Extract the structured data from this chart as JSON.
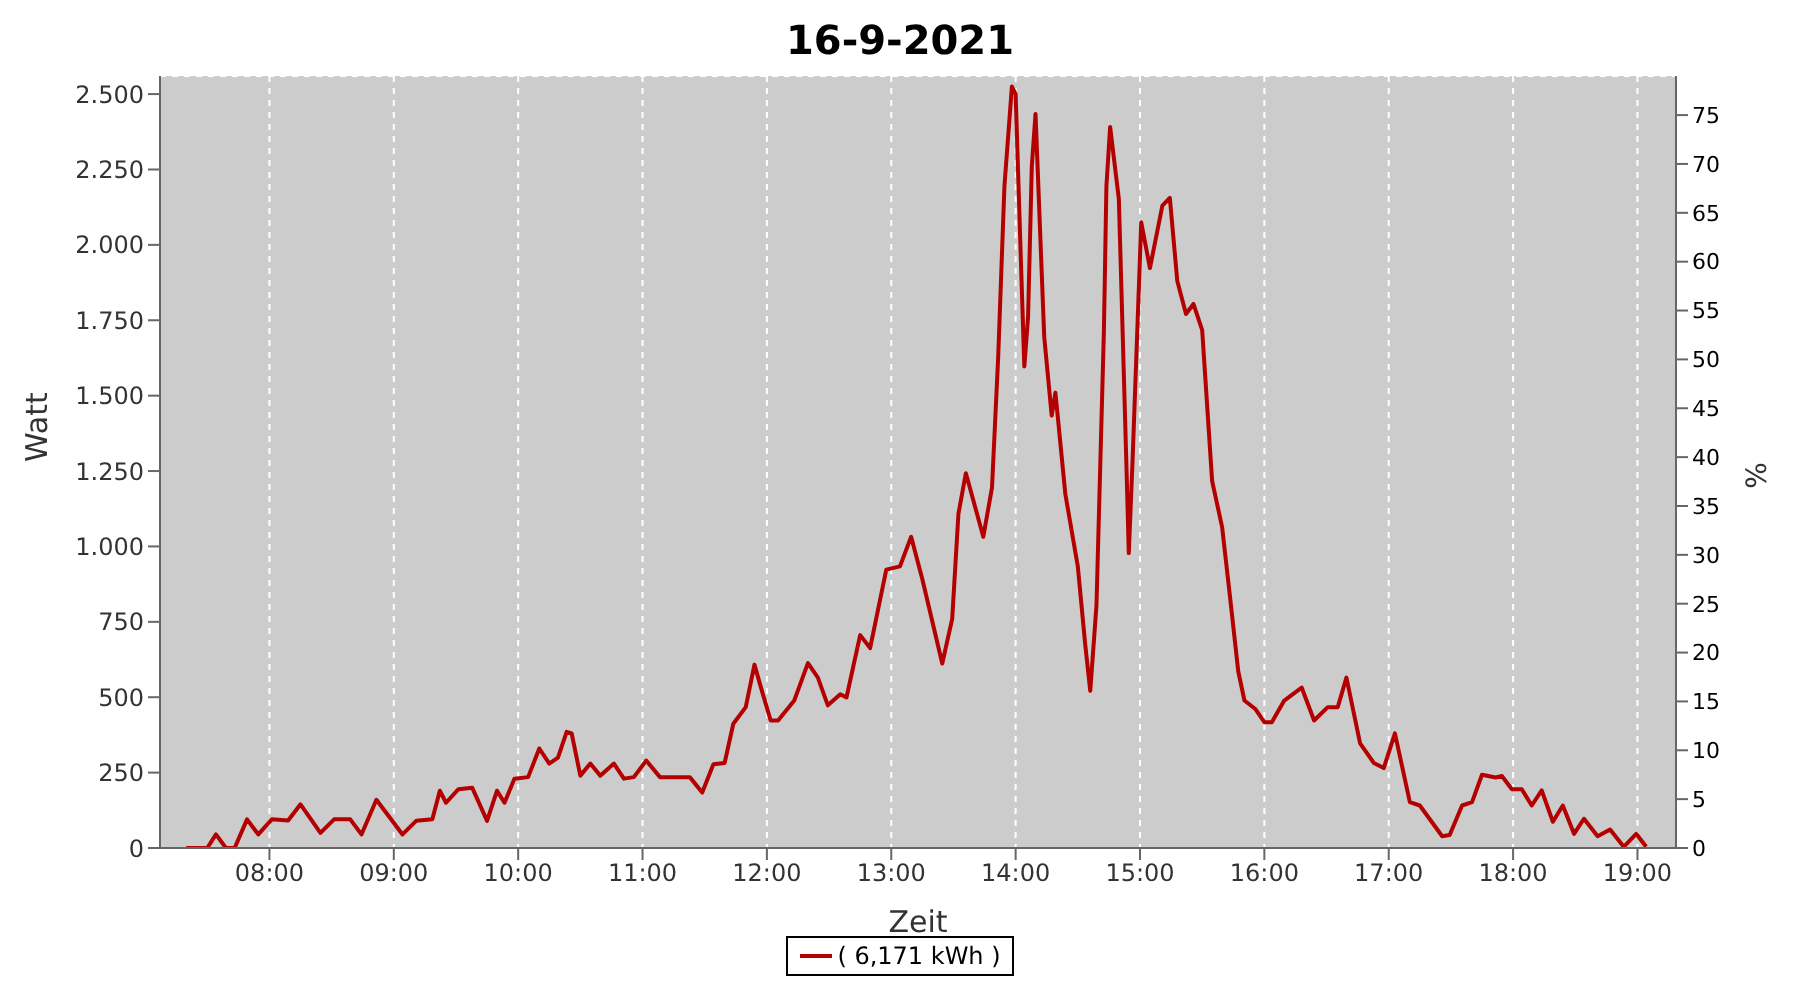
{
  "chart_data": {
    "type": "line",
    "title": "16-9-2021",
    "xlabel": "Zeit",
    "ylabel": "Watt",
    "y2label": "%",
    "x": [
      7.33,
      7.5,
      7.57,
      7.65,
      7.72,
      7.82,
      7.91,
      8.02,
      8.15,
      8.25,
      8.41,
      8.52,
      8.65,
      8.74,
      8.86,
      9.07,
      9.18,
      9.31,
      9.37,
      9.42,
      9.52,
      9.63,
      9.75,
      9.83,
      9.89,
      9.97,
      10.08,
      10.17,
      10.25,
      10.32,
      10.39,
      10.43,
      10.5,
      10.58,
      10.66,
      10.77,
      10.85,
      10.93,
      11.03,
      11.14,
      11.38,
      11.48,
      11.57,
      11.66,
      11.73,
      11.83,
      11.9,
      11.96,
      12.03,
      12.09,
      12.22,
      12.33,
      12.41,
      12.49,
      12.59,
      12.64,
      12.75,
      12.83,
      12.96,
      13.07,
      13.16,
      13.25,
      13.41,
      13.49,
      13.54,
      13.6,
      13.74,
      13.81,
      13.86,
      13.91,
      13.97,
      14.0,
      14.04,
      14.07,
      14.1,
      14.13,
      14.16,
      14.23,
      14.29,
      14.32,
      14.4,
      14.5,
      14.56,
      14.6,
      14.65,
      14.71,
      14.73,
      14.76,
      14.83,
      14.89,
      14.91,
      14.94,
      15.01,
      15.08,
      15.18,
      15.24,
      15.3,
      15.37,
      15.43,
      15.5,
      15.58,
      15.66,
      15.72,
      15.79,
      15.84,
      15.93,
      16.0,
      16.06,
      16.16,
      16.3,
      16.4,
      16.51,
      16.59,
      16.66,
      16.77,
      16.88,
      16.96,
      17.05,
      17.17,
      17.25,
      17.43,
      17.49,
      17.59,
      17.67,
      17.75,
      17.86,
      17.91,
      17.99,
      18.07,
      18.15,
      18.23,
      18.32,
      18.4,
      18.49,
      18.57,
      18.68,
      18.78,
      18.89,
      18.99,
      19.07
    ],
    "series": [
      {
        "name": "( 6,171 kWh )",
        "color": "#b40000",
        "values": [
          0,
          0,
          45,
          0,
          0,
          95,
          45,
          95,
          91,
          145,
          50,
          95,
          95,
          45,
          160,
          45,
          90,
          95,
          190,
          150,
          195,
          200,
          90,
          190,
          150,
          230,
          235,
          330,
          280,
          300,
          385,
          380,
          240,
          280,
          240,
          280,
          230,
          235,
          290,
          235,
          235,
          184,
          278,
          282,
          412,
          467,
          608,
          521,
          423,
          423,
          489,
          613,
          565,
          473,
          510,
          499,
          706,
          663,
          923,
          934,
          1032,
          891,
          612,
          760,
          1108,
          1243,
          1032,
          1195,
          1630,
          2195,
          2525,
          2500,
          1978,
          1597,
          1760,
          2260,
          2434,
          1695,
          1434,
          1510,
          1173,
          934,
          673,
          521,
          804,
          1717,
          2195,
          2391,
          2152,
          1282,
          978,
          1282,
          2075,
          1923,
          2130,
          2156,
          1880,
          1771,
          1804,
          1717,
          1217,
          1065,
          847,
          586,
          489,
          460,
          417,
          417,
          489,
          532,
          423,
          467,
          467,
          565,
          347,
          282,
          265,
          380,
          152,
          141,
          39,
          43,
          141,
          152,
          243,
          234,
          239,
          195,
          195,
          141,
          191,
          87,
          141,
          47,
          97,
          39,
          61,
          4,
          47,
          4
        ]
      }
    ],
    "xlim": [
      7.12,
      19.31
    ],
    "xticks": [
      {
        "value": 8,
        "label": "08:00"
      },
      {
        "value": 9,
        "label": "09:00"
      },
      {
        "value": 10,
        "label": "10:00"
      },
      {
        "value": 11,
        "label": "11:00"
      },
      {
        "value": 12,
        "label": "12:00"
      },
      {
        "value": 13,
        "label": "13:00"
      },
      {
        "value": 14,
        "label": "14:00"
      },
      {
        "value": 15,
        "label": "15:00"
      },
      {
        "value": 16,
        "label": "16:00"
      },
      {
        "value": 17,
        "label": "17:00"
      },
      {
        "value": 18,
        "label": "18:00"
      },
      {
        "value": 19,
        "label": "19:00"
      }
    ],
    "ylim": [
      0,
      2560
    ],
    "yticks": [
      0,
      250,
      500,
      750,
      {
        "value": 1000,
        "label": "1.000"
      },
      {
        "value": 1250,
        "label": "1.250"
      },
      {
        "value": 1500,
        "label": "1.500"
      },
      {
        "value": 1750,
        "label": "1.750"
      },
      {
        "value": 2000,
        "label": "2.000"
      },
      {
        "value": 2250,
        "label": "2.250"
      },
      {
        "value": 2500,
        "label": "2.500"
      }
    ],
    "y2lim": [
      0,
      79
    ],
    "y2ticks": [
      0,
      5,
      10,
      15,
      20,
      25,
      30,
      35,
      40,
      45,
      50,
      55,
      60,
      65,
      70,
      75
    ],
    "grid": true,
    "legend": "bottom",
    "marker": "none",
    "line_style": "solid"
  }
}
